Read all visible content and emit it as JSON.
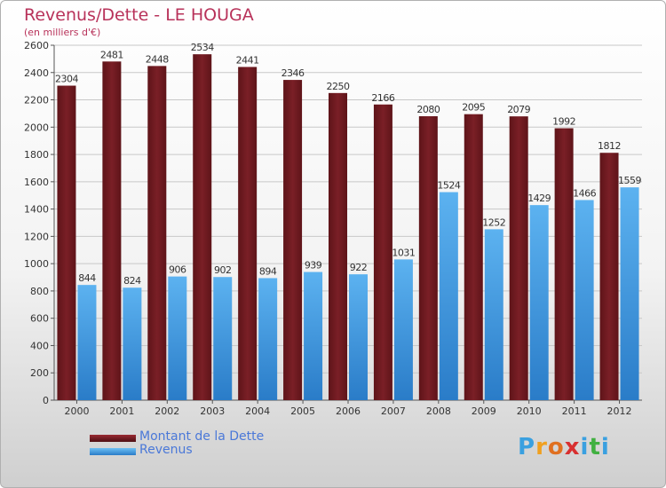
{
  "header": {
    "title": "Revenus/Dette - LE HOUGA",
    "subtitle": "(en milliers d'€)"
  },
  "colors": {
    "dette": "#7a1f26",
    "revenus": "#4aa0e6",
    "title": "#b8325a",
    "legend_text": "#4a78d8"
  },
  "chart_data": {
    "type": "bar",
    "title": "Revenus/Dette - LE HOUGA",
    "subtitle": "(en milliers d'€)",
    "categories": [
      "2000",
      "2001",
      "2002",
      "2003",
      "2004",
      "2005",
      "2006",
      "2007",
      "2008",
      "2009",
      "2010",
      "2011",
      "2012"
    ],
    "series": [
      {
        "name": "Montant de la Dette",
        "values": [
          2304,
          2481,
          2448,
          2534,
          2441,
          2346,
          2250,
          2166,
          2080,
          2095,
          2079,
          1992,
          1812
        ]
      },
      {
        "name": "Revenus",
        "values": [
          844,
          824,
          906,
          902,
          894,
          939,
          922,
          1031,
          1524,
          1252,
          1429,
          1466,
          1559
        ]
      }
    ],
    "ylim": [
      0,
      2600
    ],
    "yticks": [
      0,
      200,
      400,
      600,
      800,
      1000,
      1200,
      1400,
      1600,
      1800,
      2000,
      2200,
      2400,
      2600
    ],
    "grid": true,
    "legend_position": "bottom-left"
  },
  "legend": {
    "items": [
      {
        "label": "Montant de la Dette"
      },
      {
        "label": "Revenus"
      }
    ]
  },
  "logo": {
    "letters": [
      "P",
      "r",
      "o",
      "x",
      "i",
      "t",
      "i"
    ],
    "colors": [
      "#3aa0e0",
      "#f0a020",
      "#e07020",
      "#d83030",
      "#3aa0e0",
      "#40b040",
      "#3aa0e0"
    ]
  }
}
